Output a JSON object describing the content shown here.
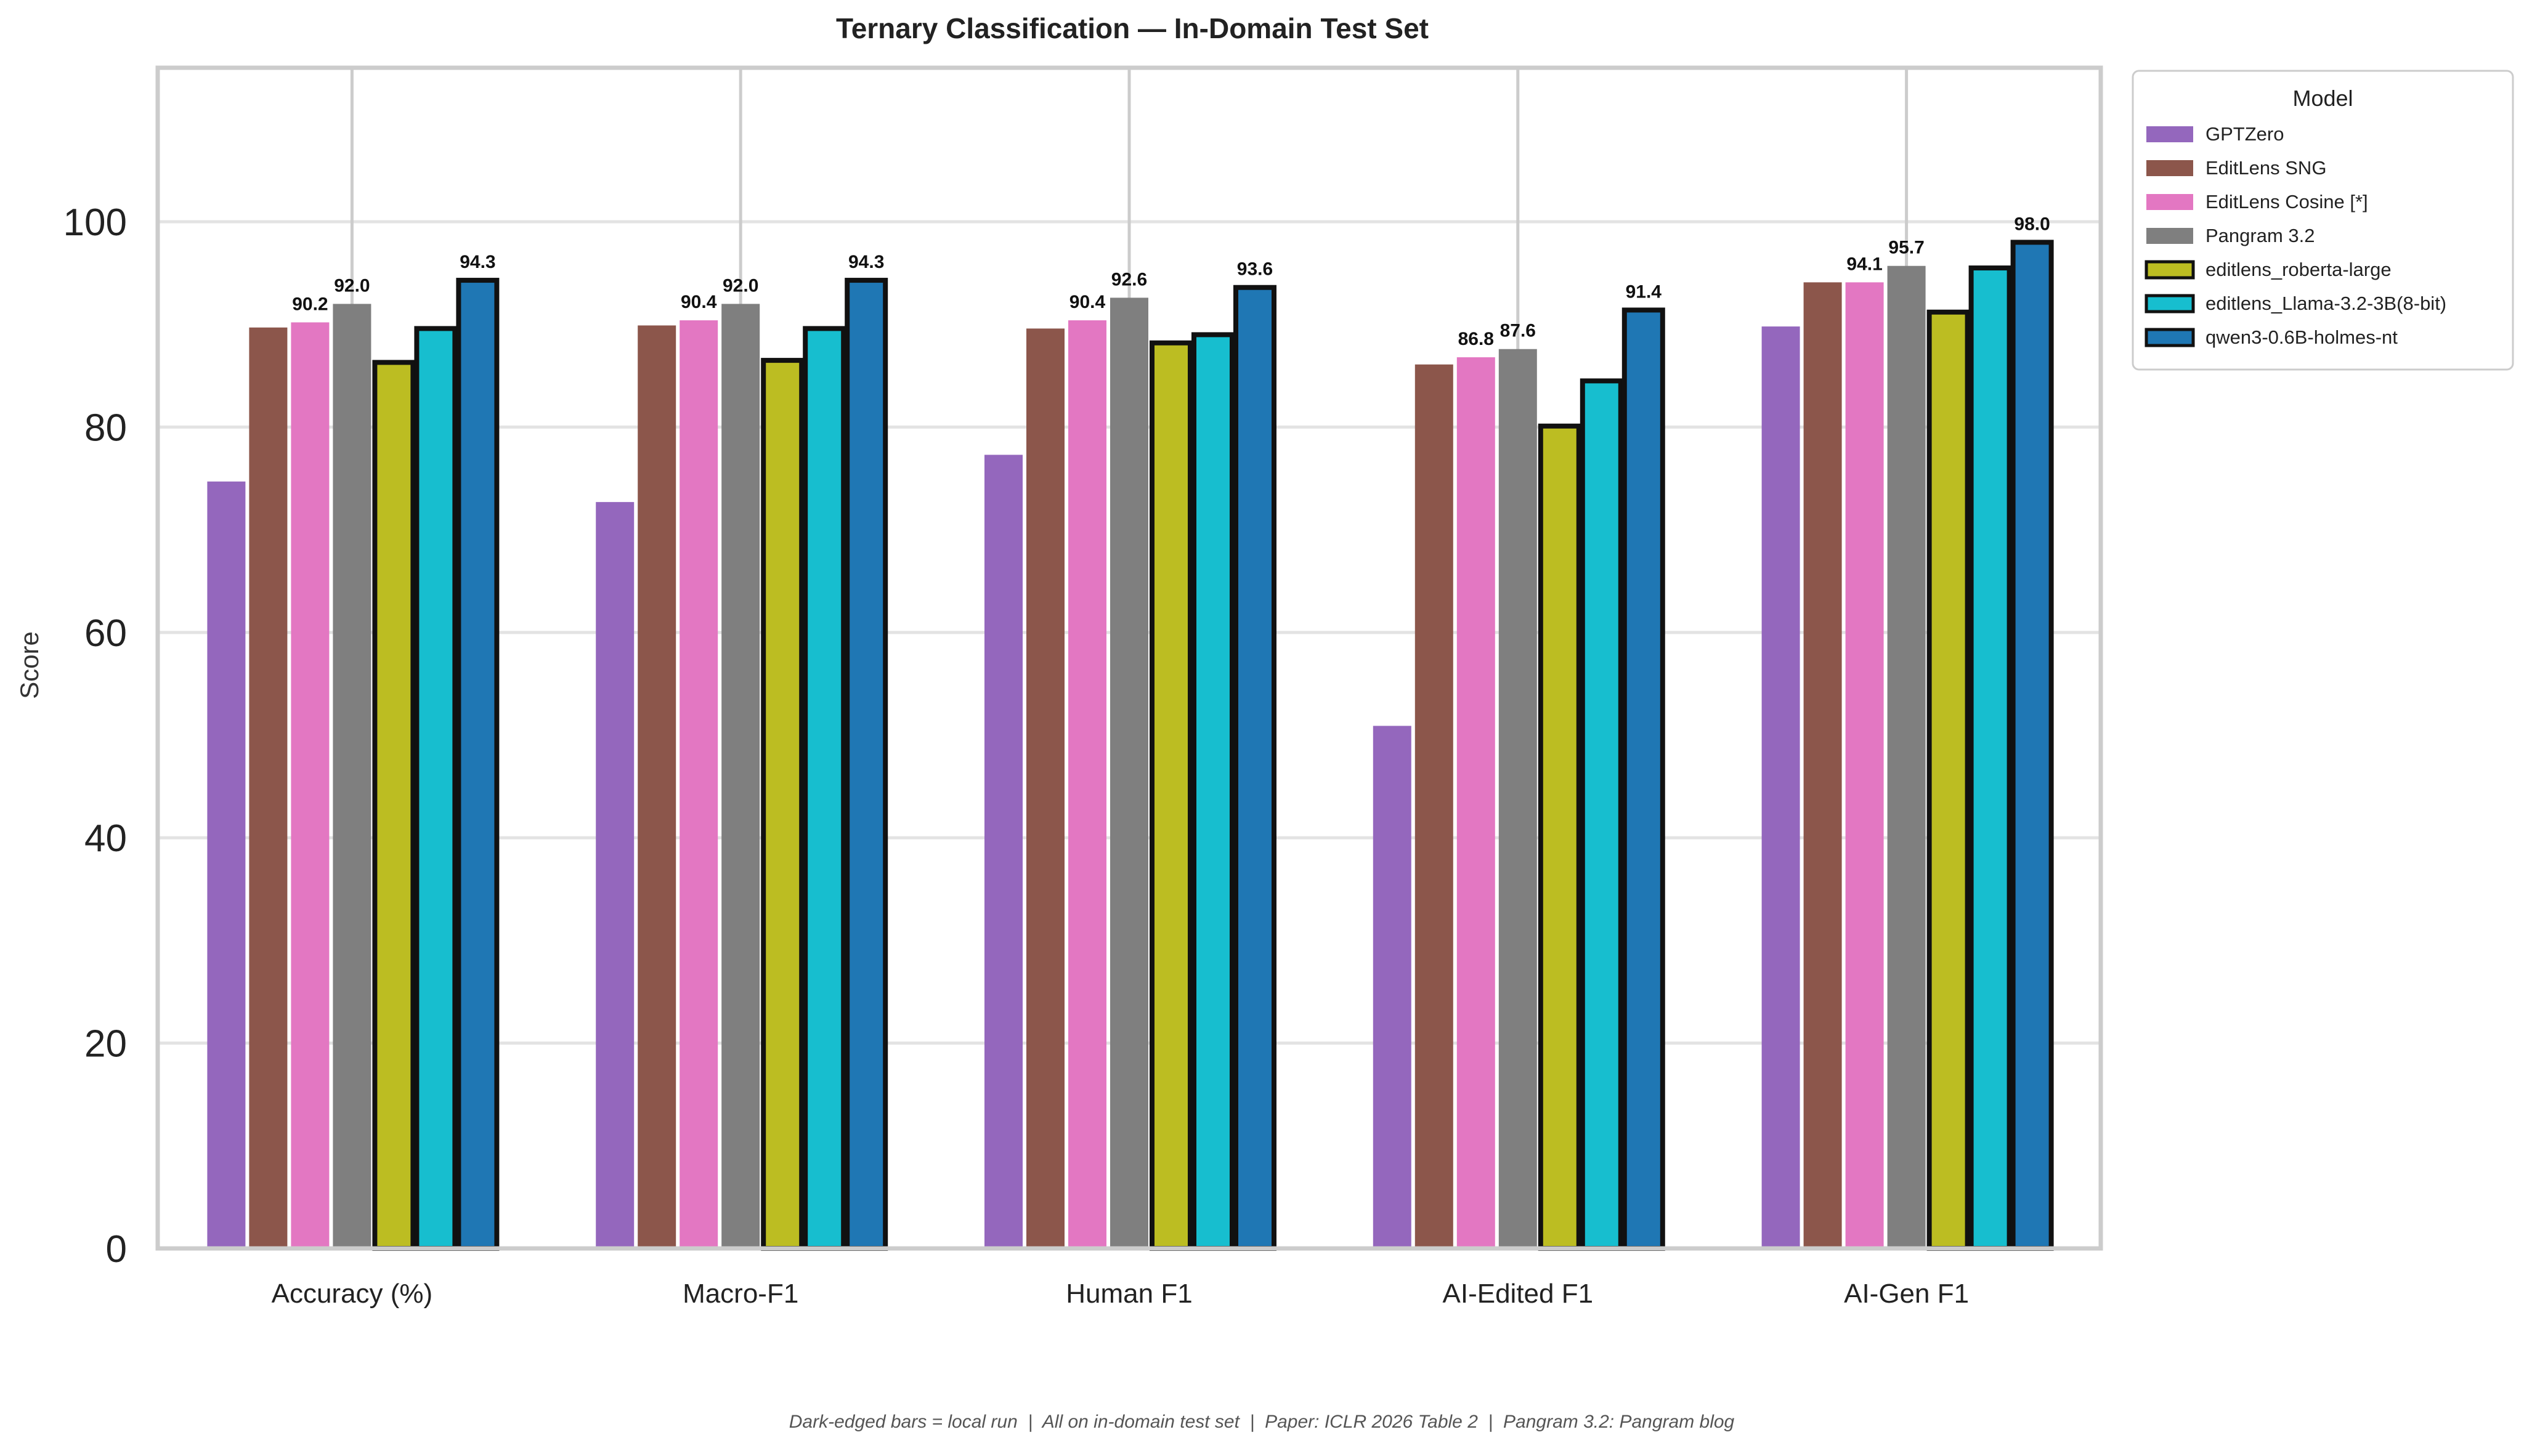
{
  "chart_data": {
    "type": "bar",
    "title": "Ternary Classification — In-Domain Test Set",
    "xlabel": "",
    "ylabel": "Score",
    "ylim": [
      0,
      115
    ],
    "yticks": [
      0,
      20,
      40,
      60,
      80,
      100
    ],
    "grid": "horizontal",
    "legend_title": "Model",
    "legend_position": "outside-top-right",
    "categories": [
      "Accuracy (%)",
      "Macro-F1",
      "Human F1",
      "AI-Edited F1",
      "AI-Gen F1"
    ],
    "series": [
      {
        "name": "GPTZero",
        "color": "#9467bd",
        "local_run": false,
        "values": [
          74.7,
          72.7,
          77.3,
          50.9,
          89.8
        ]
      },
      {
        "name": "EditLens SNG",
        "color": "#8c564b",
        "local_run": false,
        "values": [
          89.7,
          89.9,
          89.6,
          86.1,
          94.1
        ]
      },
      {
        "name": "EditLens Cosine [*]",
        "color": "#e377c2",
        "local_run": false,
        "values": [
          90.2,
          90.4,
          90.4,
          86.8,
          94.1
        ]
      },
      {
        "name": "Pangram 3.2",
        "color": "#7f7f7f",
        "local_run": false,
        "values": [
          92.0,
          92.0,
          92.6,
          87.6,
          95.7
        ]
      },
      {
        "name": "editlens_roberta-large",
        "color": "#bcbd22",
        "local_run": true,
        "values": [
          86.3,
          86.5,
          88.2,
          80.1,
          91.2
        ]
      },
      {
        "name": "editlens_Llama-3.2-3B(8-bit)",
        "color": "#17becf",
        "local_run": true,
        "values": [
          89.6,
          89.6,
          89.0,
          84.5,
          95.5
        ]
      },
      {
        "name": "qwen3-0.6B-holmes-nt",
        "color": "#1f77b4",
        "local_run": true,
        "values": [
          94.3,
          94.3,
          93.6,
          91.4,
          98.0
        ]
      }
    ],
    "value_labels": [
      {
        "category": 0,
        "series": 2,
        "text": "90.2"
      },
      {
        "category": 0,
        "series": 3,
        "text": "92.0"
      },
      {
        "category": 0,
        "series": 6,
        "text": "94.3"
      },
      {
        "category": 1,
        "series": 2,
        "text": "90.4"
      },
      {
        "category": 1,
        "series": 3,
        "text": "92.0"
      },
      {
        "category": 1,
        "series": 6,
        "text": "94.3"
      },
      {
        "category": 2,
        "series": 2,
        "text": "90.4"
      },
      {
        "category": 2,
        "series": 3,
        "text": "92.6"
      },
      {
        "category": 2,
        "series": 6,
        "text": "93.6"
      },
      {
        "category": 3,
        "series": 2,
        "text": "86.8"
      },
      {
        "category": 3,
        "series": 3,
        "text": "87.6"
      },
      {
        "category": 3,
        "series": 6,
        "text": "91.4"
      },
      {
        "category": 4,
        "series": 2,
        "text": "94.1"
      },
      {
        "category": 4,
        "series": 3,
        "text": "95.7"
      },
      {
        "category": 4,
        "series": 6,
        "text": "98.0"
      }
    ],
    "footnote": "Dark-edged bars = local run  |  All on in-domain test set  |  Paper: ICLR 2026 Table 2  |  Pangram 3.2: Pangram blog"
  }
}
